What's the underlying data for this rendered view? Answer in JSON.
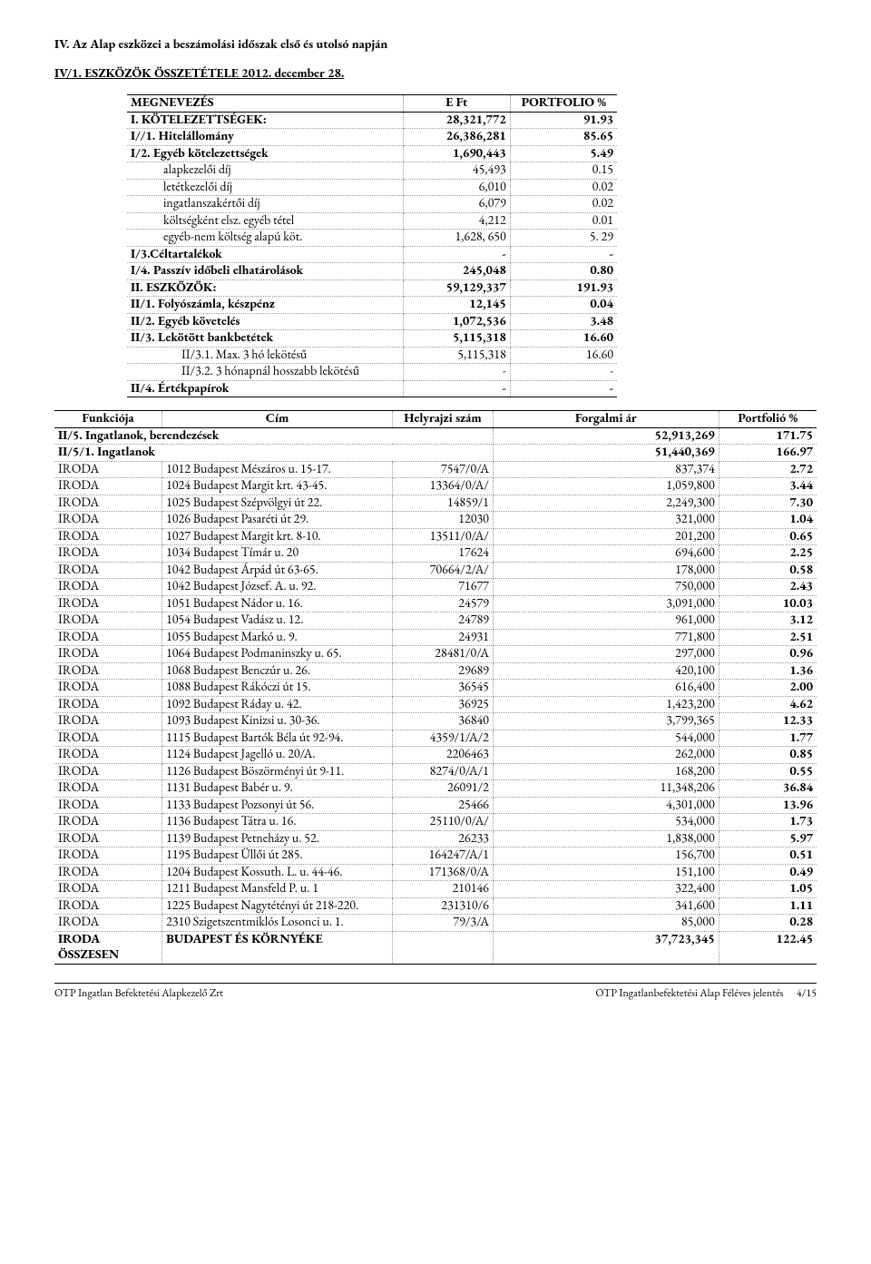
{
  "heading": "IV.    Az Alap eszközei a beszámolási időszak első és utolsó napján",
  "subheading": "IV/1. ESZKÖZÖK ÖSSZETÉTELE 2012. december 28.",
  "table1": {
    "headers": [
      "MEGNEVEZÉS",
      "E Ft",
      "PORTFOLIO %"
    ],
    "rows": [
      {
        "bold": true,
        "label": "I. KÖTELEZETTSÉGEK:",
        "eft": "28,321,772",
        "pct": "91.93"
      },
      {
        "bold": true,
        "label": "I//1. Hitelállomány",
        "eft": "26,386,281",
        "pct": "85.65"
      },
      {
        "bold": true,
        "label": "I/2. Egyéb kötelezettségek",
        "eft": "1,690,443",
        "pct": "5.49"
      },
      {
        "indent": 1,
        "label": "alapkezelői díj",
        "eft": "45,493",
        "pct": "0.15"
      },
      {
        "indent": 1,
        "label": "letétkezelői díj",
        "eft": "6,010",
        "pct": "0.02"
      },
      {
        "indent": 1,
        "label": "ingatlanszakértői díj",
        "eft": "6,079",
        "pct": "0.02"
      },
      {
        "indent": 1,
        "label": "költségként elsz. egyéb tétel",
        "eft": "4,212",
        "pct": "0.01"
      },
      {
        "indent": 1,
        "label": "egyéb-nem költség alapú köt.",
        "eft": "1,628, 650",
        "pct": "5. 29"
      },
      {
        "bold": true,
        "label": "I/3.Céltartalékok",
        "eft": "-",
        "pct": "-"
      },
      {
        "bold": true,
        "label": "I/4. Passzív időbeli elhatárolások",
        "eft": "245,048",
        "pct": "0.80"
      },
      {
        "bold": true,
        "label": "II. ESZKÖZÖK:",
        "eft": "59,129,337",
        "pct": "191.93"
      },
      {
        "bold": true,
        "label": "II/1. Folyószámla, készpénz",
        "eft": "12,145",
        "pct": "0.04"
      },
      {
        "bold": true,
        "label": "II/2. Egyéb követelés",
        "eft": "1,072,536",
        "pct": "3.48"
      },
      {
        "bold": true,
        "label": "II/3. Lekötött bankbetétek",
        "eft": "5,115,318",
        "pct": "16.60"
      },
      {
        "indent": 2,
        "label": "II/3.1. Max. 3 hó lekötésű",
        "eft": "5,115,318",
        "pct": "16.60"
      },
      {
        "indent": 2,
        "label": "II/3.2. 3 hónapnál hosszabb lekötésű",
        "eft": "-",
        "pct": "-"
      },
      {
        "bold": true,
        "label": "II/4. Értékpapírok",
        "eft": "-",
        "pct": "-"
      }
    ]
  },
  "table2": {
    "headers": [
      "Funkciója",
      "Cím",
      "Helyrajzi szám",
      "Forgalmi ár",
      "Portfolió %"
    ],
    "section_rows": [
      {
        "bold": true,
        "label": "II/5. Ingatlanok, berendezések",
        "eft": "52,913,269",
        "pct": "171.75"
      },
      {
        "bold": true,
        "label": "II/5/1. Ingatlanok",
        "eft": "51,440,369",
        "pct": "166.97"
      }
    ],
    "rows": [
      {
        "f": "IRODA",
        "c": "1012 Budapest Mészáros u. 15-17.",
        "h": "7547/0/A",
        "a": "837,374",
        "p": "2.72"
      },
      {
        "f": "IRODA",
        "c": "1024 Budapest Margit krt. 43-45.",
        "h": "13364/0/A/",
        "a": "1,059,800",
        "p": "3.44"
      },
      {
        "f": "IRODA",
        "c": "1025 Budapest Szépvölgyi út 22.",
        "h": "14859/1",
        "a": "2,249,300",
        "p": "7.30"
      },
      {
        "f": "IRODA",
        "c": "1026 Budapest Pasaréti út 29.",
        "h": "12030",
        "a": "321,000",
        "p": "1.04"
      },
      {
        "f": "IRODA",
        "c": "1027 Budapest Margit krt. 8-10.",
        "h": "13511/0/A/",
        "a": "201,200",
        "p": "0.65"
      },
      {
        "f": "IRODA",
        "c": "1034 Budapest Tímár u. 20",
        "h": "17624",
        "a": "694,600",
        "p": "2.25"
      },
      {
        "f": "IRODA",
        "c": "1042 Budapest Árpád út 63-65.",
        "h": "70664/2/A/",
        "a": "178,000",
        "p": "0.58"
      },
      {
        "f": "IRODA",
        "c": "1042 Budapest József. A. u. 92.",
        "h": "71677",
        "a": "750,000",
        "p": "2.43"
      },
      {
        "f": "IRODA",
        "c": "1051 Budapest Nádor u. 16.",
        "h": "24579",
        "a": "3,091,000",
        "p": "10.03"
      },
      {
        "f": "IRODA",
        "c": "1054 Budapest Vadász u. 12.",
        "h": "24789",
        "a": "961,000",
        "p": "3.12"
      },
      {
        "f": "IRODA",
        "c": "1055 Budapest Markó u. 9.",
        "h": "24931",
        "a": "771,800",
        "p": "2.51"
      },
      {
        "f": "IRODA",
        "c": "1064 Budapest Podmaninszky u. 65.",
        "h": "28481/0/A",
        "a": "297,000",
        "p": "0.96"
      },
      {
        "f": "IRODA",
        "c": "1068 Budapest Benczúr u. 26.",
        "h": "29689",
        "a": "420,100",
        "p": "1.36"
      },
      {
        "f": "IRODA",
        "c": "1088 Budapest Rákóczi út 15.",
        "h": "36545",
        "a": "616,400",
        "p": "2.00"
      },
      {
        "f": "IRODA",
        "c": "1092 Budapest Ráday u. 42.",
        "h": "36925",
        "a": "1,423,200",
        "p": "4.62"
      },
      {
        "f": "IRODA",
        "c": "1093 Budapest Kinizsi u. 30-36.",
        "h": "36840",
        "a": "3,799,365",
        "p": "12.33"
      },
      {
        "f": "IRODA",
        "c": "1115 Budapest Bartók Béla út 92-94.",
        "h": "4359/1/A/2",
        "a": "544,000",
        "p": "1.77"
      },
      {
        "f": "IRODA",
        "c": "1124 Budapest Jagelló u. 20/A.",
        "h": "2206463",
        "a": "262,000",
        "p": "0.85"
      },
      {
        "f": "IRODA",
        "c": "1126 Budapest Böszörményi út 9-11.",
        "h": "8274/0/A/1",
        "a": "168,200",
        "p": "0.55"
      },
      {
        "f": "IRODA",
        "c": "1131 Budapest Babér u. 9.",
        "h": "26091/2",
        "a": "11,348,206",
        "p": "36.84"
      },
      {
        "f": "IRODA",
        "c": "1133 Budapest Pozsonyi út 56.",
        "h": "25466",
        "a": "4,301,000",
        "p": "13.96"
      },
      {
        "f": "IRODA",
        "c": "1136 Budapest Tátra u. 16.",
        "h": "25110/0/A/",
        "a": "534,000",
        "p": "1.73"
      },
      {
        "f": "IRODA",
        "c": "1139 Budapest Petneházy u. 52.",
        "h": "26233",
        "a": "1,838,000",
        "p": "5.97"
      },
      {
        "f": "IRODA",
        "c": "1195 Budapest Üllői út 285.",
        "h": "164247/A/1",
        "a": "156,700",
        "p": "0.51"
      },
      {
        "f": "IRODA",
        "c": "1204 Budapest Kossuth. L. u. 44-46.",
        "h": "171368/0/A",
        "a": "151,100",
        "p": "0.49"
      },
      {
        "f": "IRODA",
        "c": "1211 Budapest Mansfeld P. u. 1",
        "h": "210146",
        "a": "322,400",
        "p": "1.05"
      },
      {
        "f": "IRODA",
        "c": "1225 Budapest Nagytétényi út 218-220.",
        "h": "231310/6",
        "a": "341,600",
        "p": "1.11"
      },
      {
        "f": "IRODA",
        "c": "2310 Szigetszentmiklós Losonci u. 1.",
        "h": "79/3/A",
        "a": "85,000",
        "p": "0.28"
      }
    ],
    "total": {
      "f": "IRODA ÖSSZESEN",
      "c": "BUDAPEST ÉS KÖRNYÉKE",
      "h": "",
      "a": "37,723,345",
      "p": "122.45"
    }
  },
  "footer": {
    "left": "OTP Ingatlan Befektetési Alapkezelő Zrt",
    "center": "OTP Ingatlanbefektetési Alap Féléves jelentés",
    "right": "4/15"
  }
}
